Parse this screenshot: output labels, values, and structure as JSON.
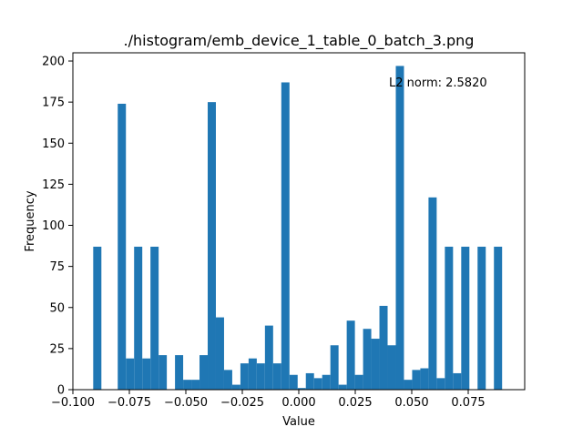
{
  "chart_data": {
    "type": "bar",
    "title": "./histogram/emb_device_1_table_0_batch_3.png",
    "xlabel": "Value",
    "ylabel": "Frequency",
    "annotation": "L2 norm: 2.5820",
    "xlim": [
      -0.1,
      0.1
    ],
    "ylim": [
      0,
      205
    ],
    "xticks": [
      -0.1,
      -0.075,
      -0.05,
      -0.025,
      0.0,
      0.025,
      0.05,
      0.075
    ],
    "xtick_labels": [
      "−0.100",
      "−0.075",
      "−0.050",
      "−0.025",
      "0.000",
      "0.025",
      "0.050",
      "0.075"
    ],
    "yticks": [
      0,
      25,
      50,
      75,
      100,
      125,
      150,
      175,
      200
    ],
    "ytick_labels": [
      "0",
      "25",
      "50",
      "75",
      "100",
      "125",
      "150",
      "175",
      "200"
    ],
    "bar_color": "#1f77b4",
    "grid": false,
    "bins": {
      "start": -0.091,
      "end": 0.09,
      "values": [
        87,
        0,
        0,
        174,
        19,
        87,
        19,
        87,
        21,
        0,
        21,
        6,
        6,
        21,
        175,
        44,
        12,
        3,
        16,
        19,
        16,
        39,
        16,
        187,
        9,
        1,
        10,
        7,
        9,
        27,
        3,
        42,
        9,
        37,
        31,
        51,
        27,
        197,
        6,
        12,
        13,
        117,
        7,
        87,
        10,
        87,
        0,
        87,
        0,
        87
      ]
    }
  }
}
